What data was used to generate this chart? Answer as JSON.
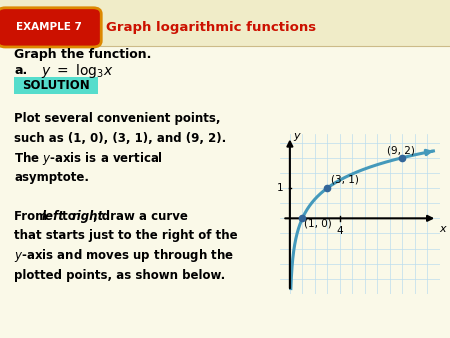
{
  "title": "Graph logarithmic functions",
  "example_label": "EXAMPLE 7",
  "bg_color": "#faf9e8",
  "header_bg": "#f0ecc8",
  "graph_bg": "#ddeeff",
  "graph_border": "#aaccdd",
  "curve_color": "#4499bb",
  "point_color": "#336699",
  "grid_color": "#bbddee",
  "points": [
    [
      1,
      0
    ],
    [
      3,
      1
    ],
    [
      9,
      2
    ]
  ],
  "point_labels": [
    "(1, 0)",
    "(3, 1)",
    "(9, 2)"
  ],
  "x_label": "x",
  "y_label": "y",
  "xlim": [
    -0.8,
    12
  ],
  "ylim": [
    -2.5,
    2.8
  ],
  "solution_bg": "#55ddcc",
  "red_color": "#cc1100",
  "badge_color": "#cc1100",
  "badge_border": "#dd8800"
}
